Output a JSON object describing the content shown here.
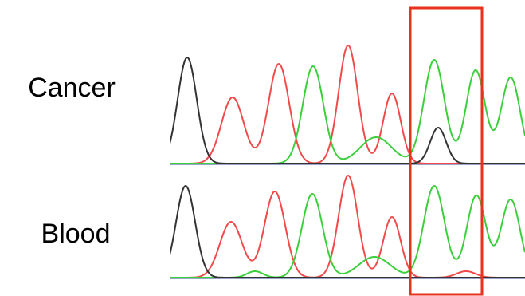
{
  "labels": {
    "top": "Cancer",
    "bottom": "Blood"
  }
}
